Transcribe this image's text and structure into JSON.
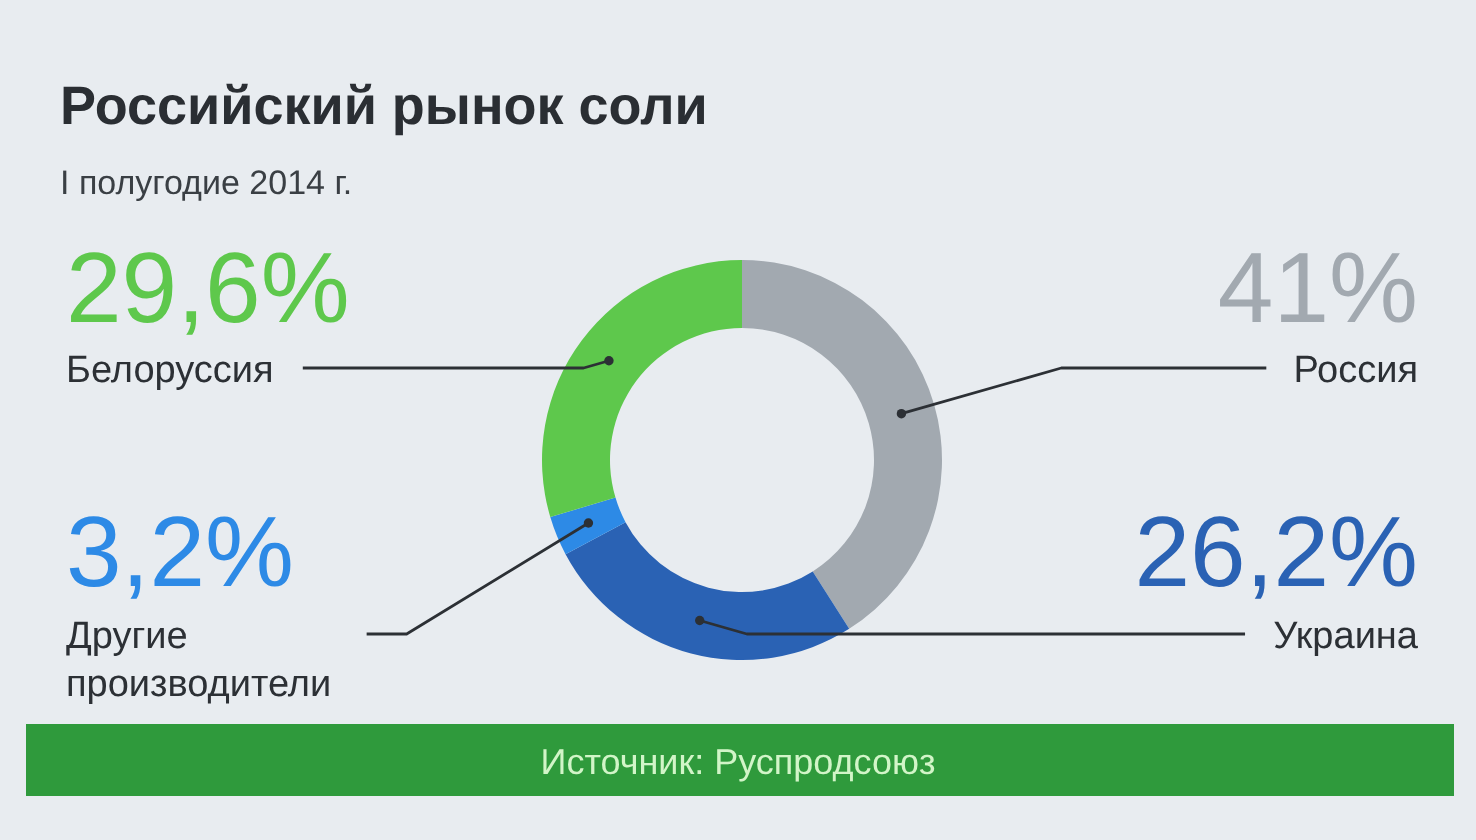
{
  "chart_data": {
    "type": "donut",
    "title": "Российский рынок соли",
    "subtitle": "I полугодие 2014 г.",
    "categories": [
      "Россия",
      "Украина",
      "Другие производители",
      "Белоруссия"
    ],
    "values": [
      41,
      26.2,
      3.2,
      29.6
    ],
    "colors": [
      "#a2a9b0",
      "#2a62b4",
      "#2d8ae6",
      "#5ec84c"
    ],
    "value_labels": [
      "41%",
      "26,2%",
      "3,2%",
      "29,6%"
    ],
    "annotations": [
      "Источник: Руспродсоюз"
    ]
  }
}
